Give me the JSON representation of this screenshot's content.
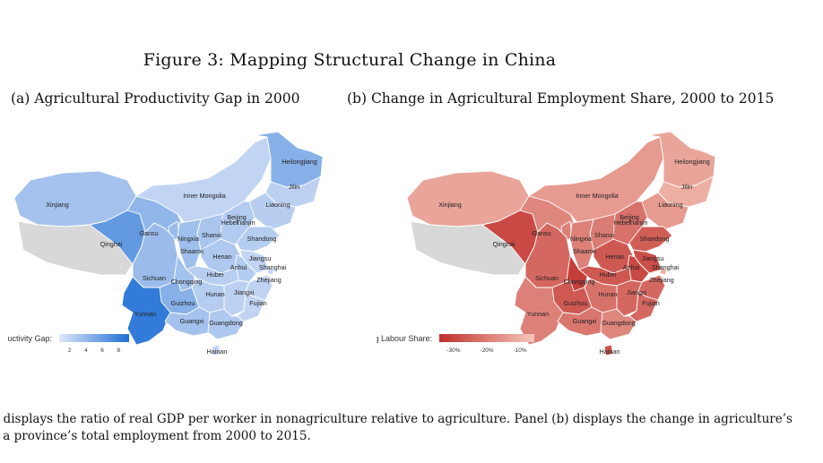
{
  "figure": {
    "title": "Figure 3:  Mapping Structural Change in China",
    "caption_line1": ") displays the ratio of real GDP per worker in nonagriculture relative to agriculture.  Panel (b) displays the change in agriculture’s",
    "caption_line2": "f a province’s total employment from 2000 to 2015."
  },
  "chart_data": [
    {
      "type": "choropleth",
      "title": "(a) Agricultural Productivity Gap in 2000",
      "legend": {
        "label": "uctivity Gap:",
        "ticks": [
          "2",
          "4",
          "6",
          "8"
        ],
        "range": [
          1,
          9
        ],
        "low_color": "#dde6f8",
        "high_color": "#1f6fd4"
      },
      "missing_color": "#d8d8d8",
      "regions": [
        {
          "name": "Xinjiang",
          "value": 3.4
        },
        {
          "name": "Qinghai",
          "value": 6.2
        },
        {
          "name": "Gansu",
          "value": 4.2
        },
        {
          "name": "Inner Mongolia",
          "value": 2.2
        },
        {
          "name": "Heilongjiang",
          "value": 4.6
        },
        {
          "name": "Jilin",
          "value": 2.4
        },
        {
          "name": "Liaoning",
          "value": 2.6
        },
        {
          "name": "Beijing",
          "value": 2.6
        },
        {
          "name": "Tianjin",
          "value": 2.4
        },
        {
          "name": "Hebei",
          "value": 2.8
        },
        {
          "name": "Ningxia",
          "value": 3.9
        },
        {
          "name": "Shanxi",
          "value": 3.2
        },
        {
          "name": "Shandong",
          "value": 2.7
        },
        {
          "name": "Shaanxi",
          "value": 3.6
        },
        {
          "name": "Henan",
          "value": 3.0
        },
        {
          "name": "Jiangsu",
          "value": 2.2
        },
        {
          "name": "Anhui",
          "value": 2.8
        },
        {
          "name": "Shanghai",
          "value": 2.0
        },
        {
          "name": "Zhejiang",
          "value": 2.3
        },
        {
          "name": "Sichuan",
          "value": 3.8
        },
        {
          "name": "Chongqing",
          "value": 3.5
        },
        {
          "name": "Hubei",
          "value": 2.6
        },
        {
          "name": "Hunan",
          "value": 2.7
        },
        {
          "name": "Jiangxi",
          "value": 2.4
        },
        {
          "name": "Fujian",
          "value": 2.2
        },
        {
          "name": "Guizhou",
          "value": 4.6
        },
        {
          "name": "Yunnan",
          "value": 8.2
        },
        {
          "name": "Guangxi",
          "value": 3.4
        },
        {
          "name": "Guangdong",
          "value": 3.0
        },
        {
          "name": "Hainan",
          "value": 2.0
        }
      ]
    },
    {
      "type": "choropleth",
      "title": "(b) Change in Agricultural Employment Share, 2000 to 2015",
      "legend": {
        "label": "Ag Labour Share:",
        "ticks": [
          "-30%",
          "-20%",
          "-10%"
        ],
        "range": [
          -35,
          -5
        ],
        "low_color": "#c0302c",
        "high_color": "#f6c8bb"
      },
      "missing_color": "#d8d8d8",
      "regions": [
        {
          "name": "Xinjiang",
          "value": -12
        },
        {
          "name": "Qinghai",
          "value": -30
        },
        {
          "name": "Gansu",
          "value": -18
        },
        {
          "name": "Inner Mongolia",
          "value": -14
        },
        {
          "name": "Heilongjiang",
          "value": -12
        },
        {
          "name": "Jilin",
          "value": -10
        },
        {
          "name": "Liaoning",
          "value": -14
        },
        {
          "name": "Beijing",
          "value": -9
        },
        {
          "name": "Tianjin",
          "value": -15
        },
        {
          "name": "Hebei",
          "value": -22
        },
        {
          "name": "Ningxia",
          "value": -19
        },
        {
          "name": "Shanxi",
          "value": -20
        },
        {
          "name": "Shandong",
          "value": -26
        },
        {
          "name": "Shaanxi",
          "value": -19
        },
        {
          "name": "Henan",
          "value": -27
        },
        {
          "name": "Jiangsu",
          "value": -29
        },
        {
          "name": "Anhui",
          "value": -30
        },
        {
          "name": "Shanghai",
          "value": -10
        },
        {
          "name": "Zhejiang",
          "value": -24
        },
        {
          "name": "Sichuan",
          "value": -24
        },
        {
          "name": "Chongqing",
          "value": -32
        },
        {
          "name": "Hubei",
          "value": -27
        },
        {
          "name": "Hunan",
          "value": -22
        },
        {
          "name": "Jiangxi",
          "value": -24
        },
        {
          "name": "Fujian",
          "value": -24
        },
        {
          "name": "Guizhou",
          "value": -27
        },
        {
          "name": "Yunnan",
          "value": -19
        },
        {
          "name": "Guangxi",
          "value": -21
        },
        {
          "name": "Guangdong",
          "value": -18
        },
        {
          "name": "Hainan",
          "value": -28
        }
      ]
    }
  ]
}
